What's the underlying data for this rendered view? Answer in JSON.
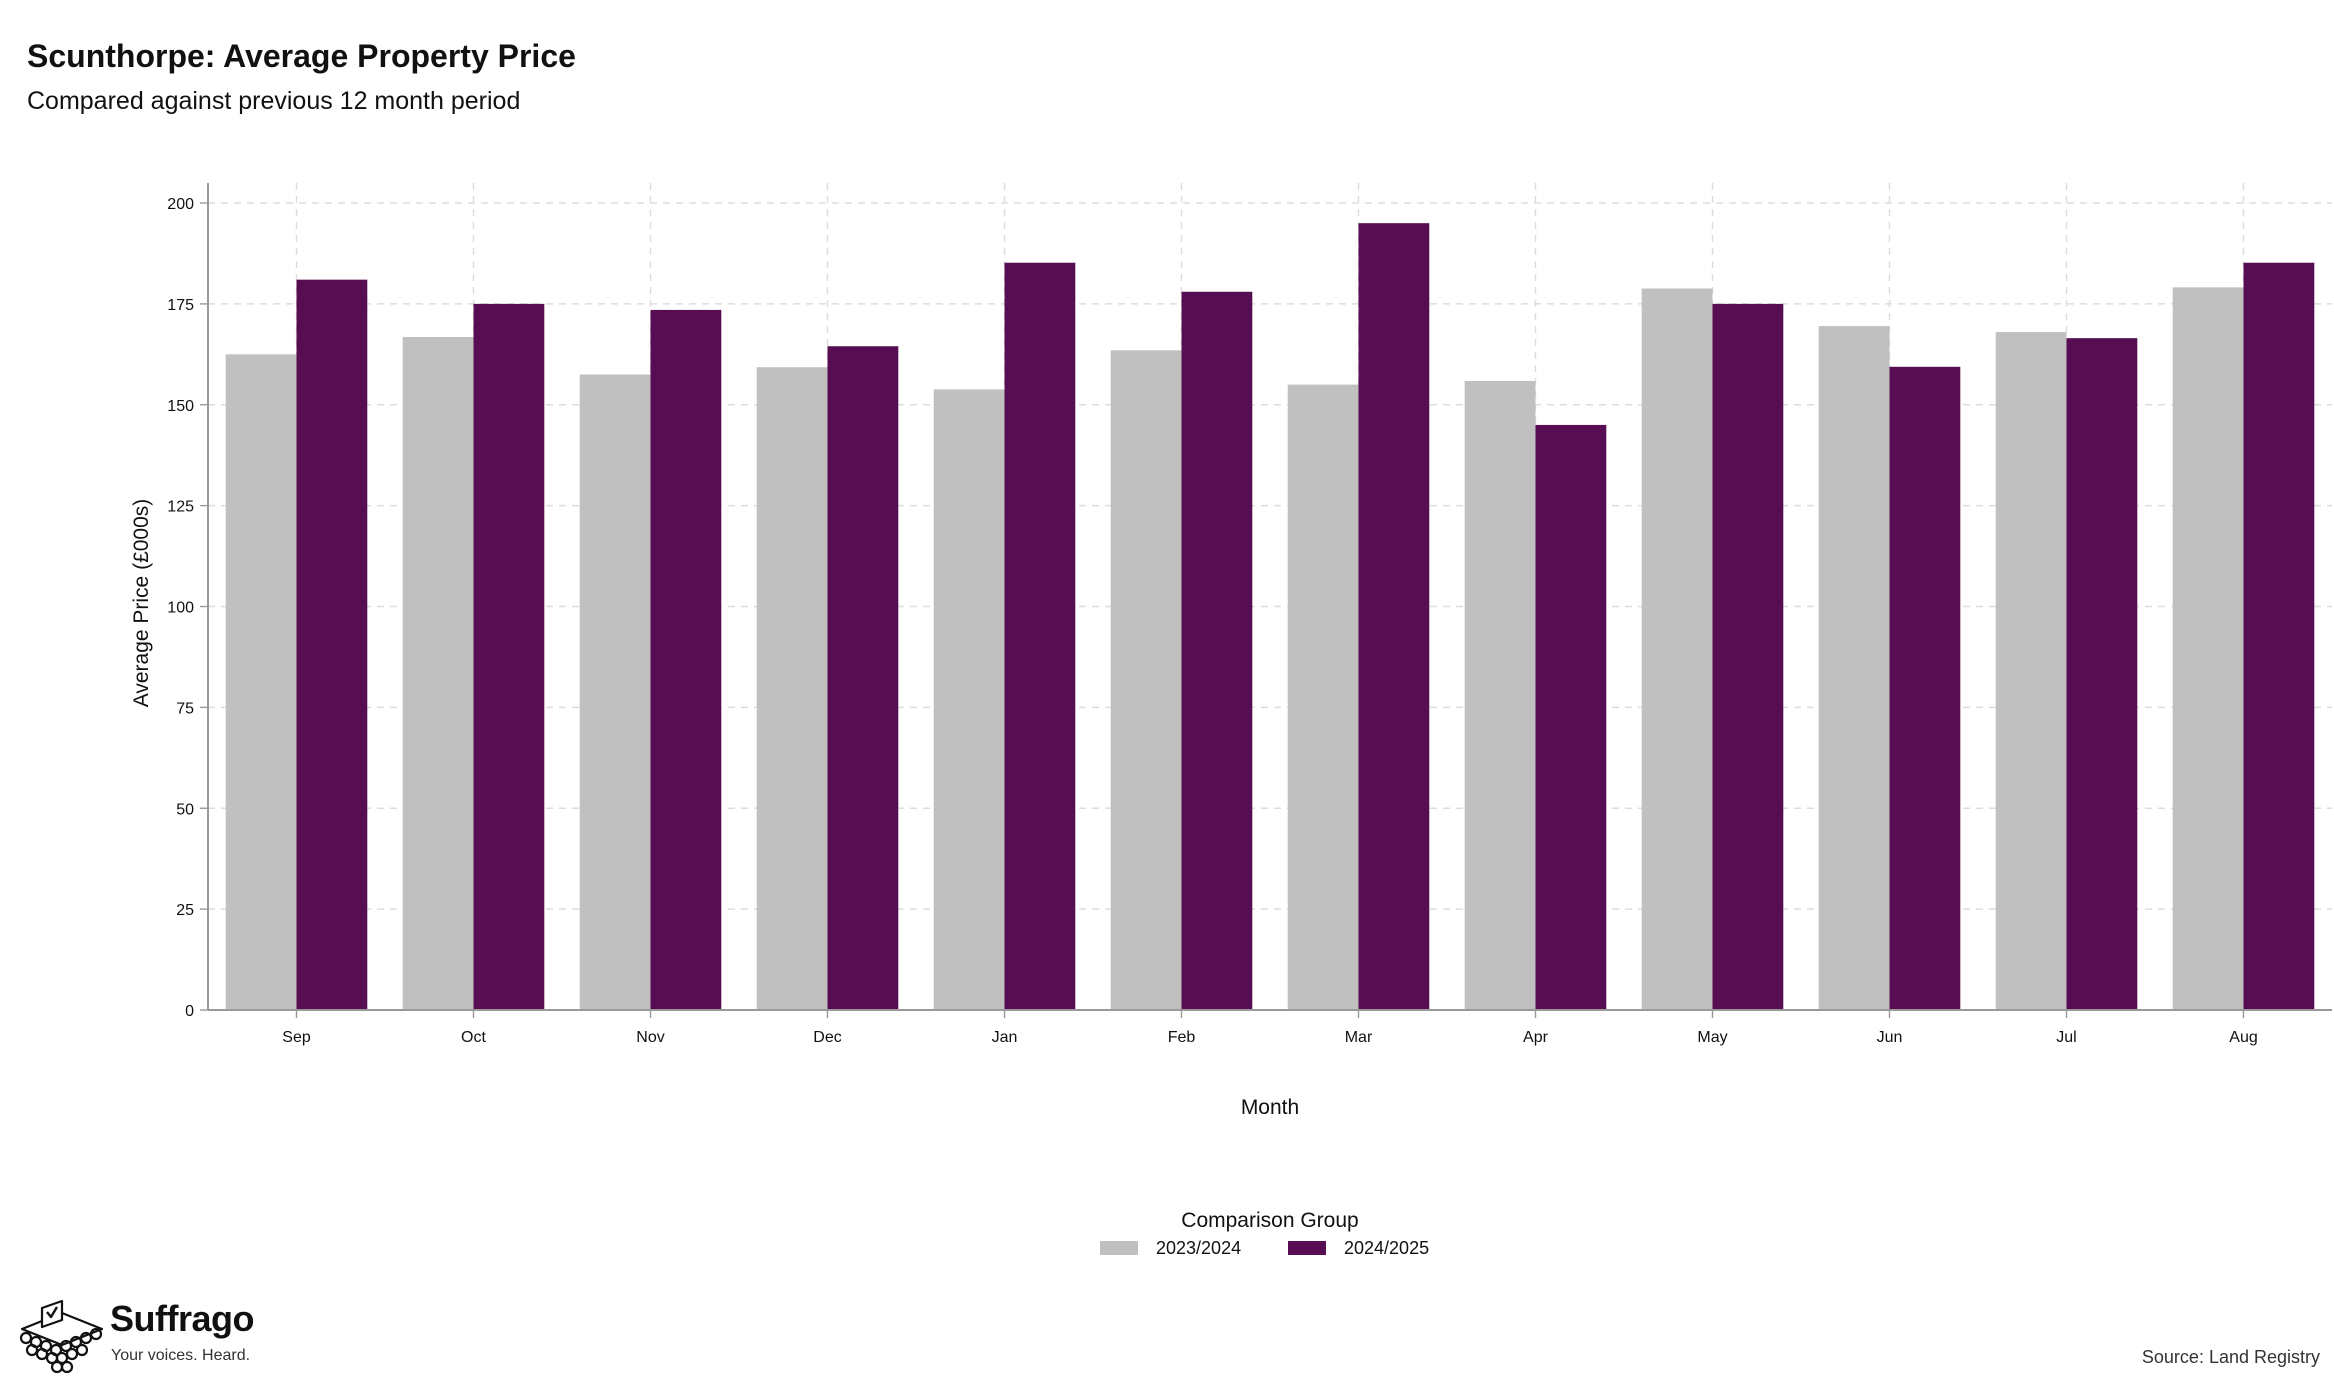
{
  "header": {
    "title": "Scunthorpe: Average Property Price",
    "subtitle": "Compared against previous 12 month period"
  },
  "footer": {
    "brand": "Suffrago",
    "tagline": "Your voices. Heard.",
    "source": "Source: Land Registry"
  },
  "legend": {
    "title": "Comparison Group",
    "placement": "bottom-center"
  },
  "colors": {
    "series_2023_2024": "#c0c0c0",
    "series_2024_2025": "#560d52",
    "grid": "#dddddd",
    "axis": "#999999"
  },
  "chart_data": {
    "type": "bar",
    "title": "Scunthorpe: Average Property Price",
    "subtitle": "Compared against previous 12 month period",
    "xlabel": "Month",
    "ylabel": "Average Price (£000s)",
    "ylim": [
      0,
      200
    ],
    "yticks": [
      0,
      25,
      50,
      75,
      100,
      125,
      150,
      175,
      200
    ],
    "grid": true,
    "categories": [
      "Sep",
      "Oct",
      "Nov",
      "Dec",
      "Jan",
      "Feb",
      "Mar",
      "Apr",
      "May",
      "Jun",
      "Jul",
      "Aug"
    ],
    "series": [
      {
        "name": "2023/2024",
        "values": [
          162.5,
          166.8,
          157.5,
          159.3,
          153.8,
          163.5,
          155.0,
          155.9,
          178.8,
          169.5,
          168.0,
          179.1
        ]
      },
      {
        "name": "2024/2025",
        "values": [
          181.0,
          175.0,
          173.5,
          164.5,
          185.2,
          178.0,
          195.0,
          145.0,
          175.0,
          159.4,
          166.5,
          185.2
        ]
      }
    ]
  }
}
